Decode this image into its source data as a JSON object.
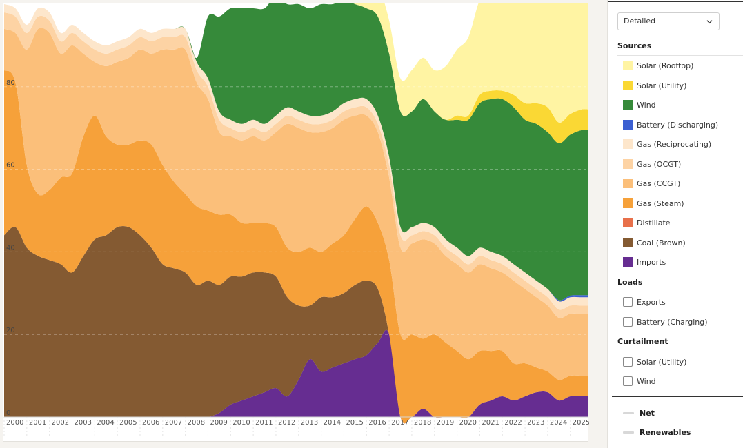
{
  "chart_data": {
    "type": "area",
    "stacked": true,
    "y_axis_ticks": [
      "0",
      "20",
      "40",
      "60",
      "80"
    ],
    "ylim": [
      0,
      100
    ],
    "x_tick_labels": [
      "2000",
      "2001",
      "2002",
      "2003",
      "2004",
      "2005",
      "2006",
      "2007",
      "2008",
      "2009",
      "2010",
      "2011",
      "2012",
      "2013",
      "2014",
      "2015",
      "2016",
      "2017",
      "2018",
      "2019",
      "2020",
      "2021",
      "2022",
      "2023",
      "2024",
      "2025"
    ],
    "x": [
      2000.0,
      2000.5,
      2001.0,
      2001.5,
      2002.0,
      2002.5,
      2003.0,
      2003.5,
      2004.0,
      2004.5,
      2005.0,
      2005.5,
      2006.0,
      2006.5,
      2007.0,
      2007.5,
      2008.0,
      2008.5,
      2009.0,
      2009.5,
      2010.0,
      2010.5,
      2011.0,
      2011.5,
      2012.0,
      2012.5,
      2013.0,
      2013.5,
      2014.0,
      2014.5,
      2015.0,
      2015.5,
      2016.0,
      2016.5,
      2017.0,
      2017.5,
      2018.0,
      2018.5,
      2019.0,
      2019.5,
      2020.0,
      2020.5,
      2021.0,
      2021.5,
      2022.0,
      2022.5,
      2023.0,
      2023.5,
      2024.0,
      2024.5,
      2025.0,
      2025.5
    ],
    "grid": "horizontal dashed",
    "series": [
      {
        "name": "Imports",
        "color": "#662d91",
        "values": [
          0,
          0,
          0,
          0,
          0,
          0,
          0,
          0,
          0,
          0,
          0,
          0,
          0,
          0,
          0,
          0,
          0,
          0,
          0,
          1,
          3,
          4,
          5,
          6,
          7,
          5,
          9,
          14,
          11,
          12,
          13,
          14,
          15,
          18,
          20,
          0,
          0,
          2,
          0,
          0,
          0,
          0,
          3,
          4,
          5,
          4,
          5,
          6,
          6,
          4,
          5,
          5
        ]
      },
      {
        "name": "Coal (Brown)",
        "color": "#845a32",
        "values": [
          44,
          46,
          41,
          39,
          38,
          37,
          35,
          39,
          43,
          44,
          46,
          46,
          44,
          41,
          37,
          36,
          35,
          32,
          33,
          31,
          31,
          30,
          30,
          29,
          27,
          24,
          18,
          13,
          18,
          17,
          17,
          18,
          18,
          13,
          0,
          0,
          0,
          0,
          0,
          0,
          0,
          0,
          0,
          0,
          0,
          0,
          0,
          0,
          0,
          0,
          0,
          0
        ]
      },
      {
        "name": "Gas (Steam)",
        "color": "#f6a13a",
        "values": [
          40,
          35,
          20,
          15,
          17,
          21,
          24,
          29,
          30,
          24,
          20,
          20,
          23,
          25,
          24,
          21,
          19,
          19,
          17,
          17,
          15,
          13,
          12,
          12,
          12,
          12,
          13,
          14,
          11,
          13,
          14,
          16,
          18,
          16,
          18,
          20,
          20,
          17,
          20,
          18,
          16,
          14,
          13,
          12,
          11,
          9,
          8,
          6,
          5,
          5,
          5,
          5
        ]
      },
      {
        "name": "Gas (CCGT)",
        "color": "#fbbf7a",
        "values": [
          10,
          12,
          28,
          40,
          38,
          30,
          31,
          20,
          13,
          17,
          20,
          21,
          22,
          22,
          28,
          32,
          35,
          30,
          27,
          20,
          19,
          20,
          21,
          20,
          23,
          30,
          30,
          28,
          29,
          28,
          28,
          25,
          22,
          22,
          20,
          21,
          22,
          24,
          22,
          21,
          21,
          21,
          21,
          20,
          19,
          20,
          18,
          17,
          16,
          15,
          15,
          15
        ]
      },
      {
        "name": "Gas (OCGT)",
        "color": "#fdd3a4",
        "values": [
          4,
          4,
          4,
          3,
          3,
          3,
          3,
          3,
          3,
          3,
          3,
          3,
          3,
          3,
          3,
          3,
          3,
          3,
          3,
          3,
          2,
          2,
          2,
          2,
          2,
          2,
          2,
          2,
          2,
          2,
          2,
          2,
          2,
          2,
          3,
          3,
          2,
          2,
          2,
          2,
          2,
          2,
          2,
          2,
          2,
          2,
          2,
          2,
          2,
          2,
          2,
          2
        ]
      },
      {
        "name": "Gas (Reciprocating)",
        "color": "#fde6cb",
        "values": [
          2,
          2,
          2,
          2,
          2,
          2,
          2,
          2,
          2,
          2,
          2,
          2,
          2,
          2,
          2,
          2,
          2,
          2,
          2,
          2,
          2,
          2,
          2,
          2,
          2,
          2,
          2,
          2,
          2,
          2,
          2,
          2,
          2,
          2,
          2,
          2,
          2,
          2,
          2,
          2,
          2,
          2,
          2,
          2,
          2,
          2,
          2,
          2,
          2,
          2,
          2,
          2
        ]
      },
      {
        "name": "Battery (Discharging)",
        "color": "#3b5fd1",
        "values": [
          0,
          0,
          0,
          0,
          0,
          0,
          0,
          0,
          0,
          0,
          0,
          0,
          0,
          0,
          0,
          0,
          0,
          0,
          0,
          0,
          0,
          0,
          0,
          0,
          0,
          0,
          0,
          0,
          0,
          0,
          0,
          0,
          0,
          0,
          0,
          0,
          0,
          0,
          0,
          0,
          0,
          0,
          0,
          0,
          0,
          0,
          0,
          0,
          0,
          0.3,
          0.4,
          0.5
        ]
      },
      {
        "name": "Wind",
        "color": "#368a3a",
        "values": [
          0,
          0,
          0,
          0,
          0,
          0,
          0,
          0,
          0,
          0,
          0,
          0,
          0,
          0,
          0,
          0,
          0,
          1,
          15,
          23,
          27,
          28,
          27,
          28,
          29,
          25,
          26,
          26,
          27,
          26,
          25,
          23,
          22,
          24,
          25,
          28,
          28,
          30,
          28,
          29,
          31,
          33,
          35,
          37,
          38,
          38,
          37,
          38,
          38,
          38,
          39,
          40
        ]
      },
      {
        "name": "Solar (Utility)",
        "color": "#fad834",
        "values": [
          0,
          0,
          0,
          0,
          0,
          0,
          0,
          0,
          0,
          0,
          0,
          0,
          0,
          0,
          0,
          0,
          0,
          0,
          0,
          0,
          0,
          0,
          0,
          0,
          0,
          0,
          0,
          0,
          0,
          0,
          0,
          0,
          0,
          0,
          0,
          0,
          0,
          0,
          0,
          0,
          1,
          1,
          2,
          2,
          2,
          3,
          4,
          5,
          6,
          5,
          5,
          5
        ]
      },
      {
        "name": "Solar (Rooftop)",
        "color": "#fff4a3",
        "values": [
          0,
          0,
          0,
          0,
          0,
          0,
          0,
          0,
          0,
          0,
          0,
          0,
          0,
          0,
          0,
          0,
          0,
          0,
          0,
          0,
          0,
          0,
          0,
          0,
          0,
          0,
          0,
          0,
          0,
          0,
          0,
          2,
          10,
          8,
          8,
          8,
          10,
          10,
          10,
          13,
          16,
          19,
          23,
          25,
          26,
          27,
          28,
          29,
          30,
          30,
          31,
          31
        ]
      }
    ]
  },
  "panel": {
    "view_select": "Detailed",
    "sources_title": "Sources",
    "sources": [
      {
        "label": "Solar (Rooftop)",
        "color": "#fff4a3"
      },
      {
        "label": "Solar (Utility)",
        "color": "#fad834"
      },
      {
        "label": "Wind",
        "color": "#368a3a"
      },
      {
        "label": "Battery (Discharging)",
        "color": "#3b5fd1"
      },
      {
        "label": "Gas (Reciprocating)",
        "color": "#fde6cb"
      },
      {
        "label": "Gas (OCGT)",
        "color": "#fdd3a4"
      },
      {
        "label": "Gas (CCGT)",
        "color": "#fbbf7a"
      },
      {
        "label": "Gas (Steam)",
        "color": "#f6a13a"
      },
      {
        "label": "Distillate",
        "color": "#e8704a"
      },
      {
        "label": "Coal (Brown)",
        "color": "#845a32"
      },
      {
        "label": "Imports",
        "color": "#662d91"
      }
    ],
    "loads_title": "Loads",
    "loads": [
      "Exports",
      "Battery (Charging)"
    ],
    "curtailment_title": "Curtailment",
    "curtailment": [
      "Solar (Utility)",
      "Wind"
    ],
    "lines": [
      "Net",
      "Renewables"
    ]
  }
}
